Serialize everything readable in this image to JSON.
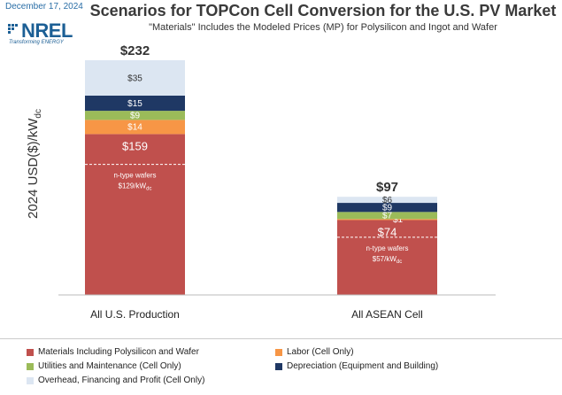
{
  "header": {
    "date": "December 17, 2024",
    "logo_text": "NREL",
    "logo_tagline": "Transforming ENERGY",
    "title": "Scenarios for TOPCon Cell Conversion for the U.S. PV Market",
    "subtitle": "\"Materials\" Includes the Modeled Prices (MP) for Polysilicon and Ingot and Wafer"
  },
  "chart_data": {
    "type": "bar",
    "stacked": true,
    "ylabel": "2024 USD($)/kW",
    "ylabel_sub": "dc",
    "ylim": [
      0,
      232
    ],
    "grid": false,
    "legend_position": "bottom",
    "categories": [
      "All U.S. Production",
      "All ASEAN Cell"
    ],
    "totals": [
      "$232",
      "$97"
    ],
    "series": [
      {
        "name": "Materials Including Polysilicon and Wafer",
        "color": "#c0504d",
        "values": [
          159,
          74
        ],
        "labels": [
          "$159",
          "$74"
        ]
      },
      {
        "name": "Labor (Cell Only)",
        "color": "#f79646",
        "values": [
          14,
          1
        ],
        "labels": [
          "$14",
          "$1"
        ]
      },
      {
        "name": "Utilities and Maintenance (Cell Only)",
        "color": "#9bbb59",
        "values": [
          9,
          7
        ],
        "labels": [
          "$9",
          "$7"
        ]
      },
      {
        "name": "Depreciation (Equipment and Building)",
        "color": "#1f3864",
        "values": [
          15,
          9
        ],
        "labels": [
          "$15",
          "$9"
        ]
      },
      {
        "name": "Overhead, Financing and Profit (Cell Only)",
        "color": "#dce6f2",
        "values": [
          35,
          6
        ],
        "labels": [
          "$35",
          "$6"
        ]
      }
    ],
    "annotations": [
      {
        "category": 0,
        "value": 129,
        "text": "n-type wafers",
        "text2": "$129/kW",
        "sub": "dc"
      },
      {
        "category": 1,
        "value": 57,
        "text": "n-type wafers",
        "text2": "$57/kW",
        "sub": "dc"
      }
    ]
  }
}
